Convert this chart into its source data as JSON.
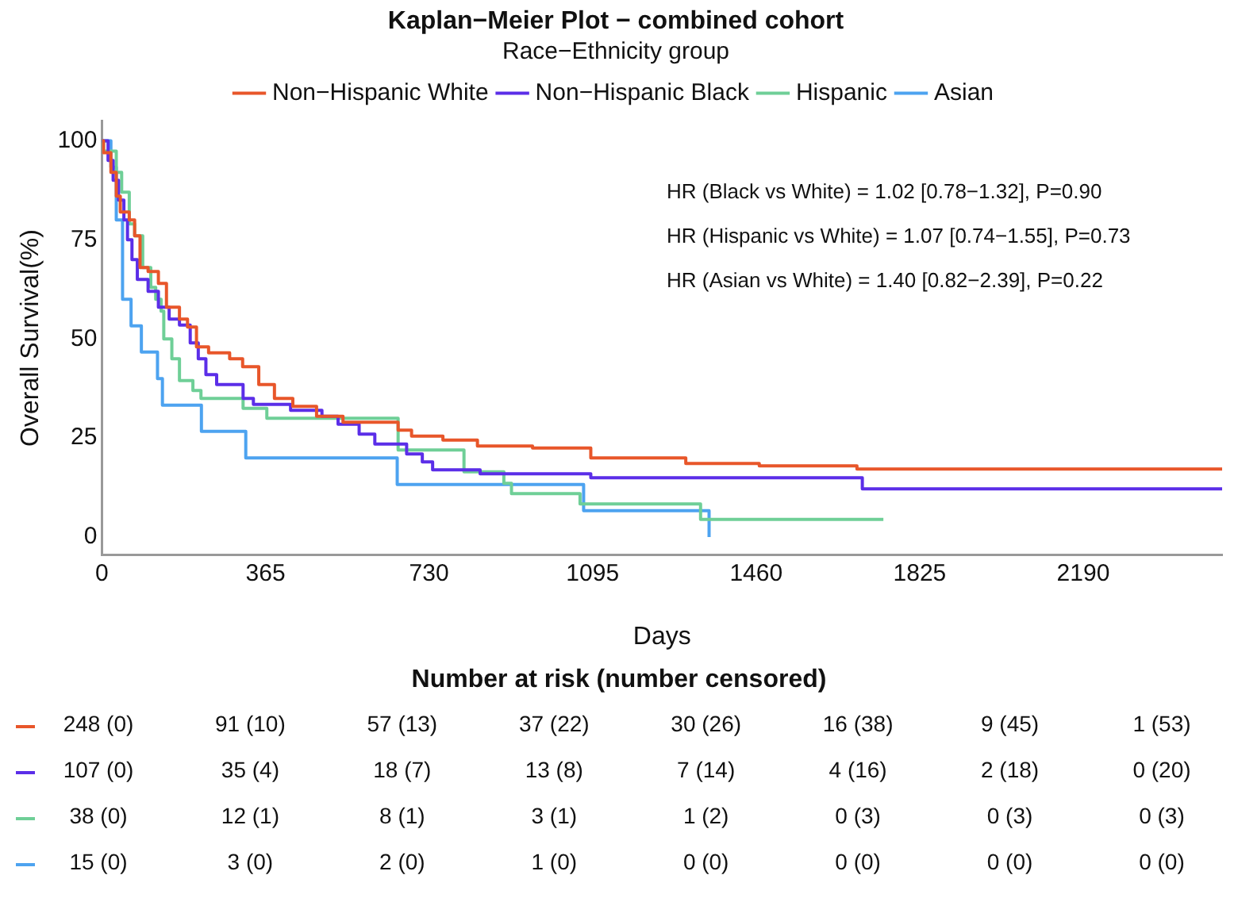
{
  "chart_data": {
    "type": "step",
    "title": "Kaplan−Meier Plot − combined cohort",
    "xlabel": "Days",
    "ylabel": "Overall Survival(%)",
    "legend_title": "Race−Ethnicity group",
    "legend": "top",
    "grid": false,
    "marker": "none",
    "line_style": "solid",
    "xlim": [
      0,
      2500
    ],
    "xticks": [
      0,
      365,
      730,
      1095,
      1460,
      1825,
      2190
    ],
    "ylim": [
      -4.5,
      105
    ],
    "yticks": [
      0,
      25,
      50,
      75,
      100
    ],
    "series": [
      {
        "name": "Non−Hispanic White",
        "color": "#e8562a",
        "x": [
          0,
          3.5,
          20,
          32,
          41,
          61,
          73,
          85,
          103,
          126,
          144,
          173,
          191,
          211,
          238,
          285,
          314,
          350,
          385,
          426,
          479,
          538,
          661,
          691,
          761,
          838,
          961,
          1091,
          1303,
          1467,
          1685,
          2500
        ],
        "values": [
          100,
          97,
          92,
          86,
          82,
          80,
          76,
          68,
          67,
          64,
          58,
          55,
          53,
          48,
          46.5,
          45,
          43,
          38.5,
          35,
          33,
          30.5,
          29,
          27,
          25.5,
          24.5,
          23,
          22.5,
          20,
          18.6,
          18,
          17.2,
          17.2
        ]
      },
      {
        "name": "Non−Hispanic Black",
        "color": "#5b2ee8",
        "x": [
          0,
          13.7,
          25,
          37,
          49,
          57,
          67,
          79,
          103,
          126,
          150,
          173,
          197,
          215,
          232,
          256,
          315,
          338,
          421,
          491,
          527,
          574,
          609,
          680,
          715,
          738,
          844,
          1091,
          1697,
          2500
        ],
        "values": [
          100,
          95,
          90,
          85,
          80,
          75,
          70,
          65,
          62,
          58,
          55,
          53.5,
          49,
          45,
          41,
          38.5,
          35,
          33.5,
          32,
          30.5,
          28.5,
          26,
          23.5,
          21,
          19,
          17,
          16,
          15,
          12.2,
          12.2
        ]
      },
      {
        "name": "Hispanic",
        "color": "#6fcf97",
        "x": [
          0,
          3.5,
          32,
          44,
          61,
          73,
          91,
          109,
          120,
          132,
          138,
          156,
          173,
          203,
          221,
          315,
          368,
          661,
          808,
          897,
          914,
          1067,
          1336,
          1744
        ],
        "values": [
          100,
          97.4,
          92,
          87,
          79,
          76,
          68,
          63,
          60,
          57,
          50,
          45,
          39.5,
          37,
          35,
          32.5,
          30,
          22,
          16.5,
          13.6,
          11,
          8.4,
          4.5,
          4.5
        ]
      },
      {
        "name": "Asian",
        "color": "#4da3f0",
        "x": [
          0,
          20,
          32,
          46,
          65,
          88,
          124,
          135,
          222,
          321,
          659,
          1075,
          1355
        ],
        "values": [
          100,
          93.3,
          80,
          60,
          53.3,
          46.7,
          40,
          33.3,
          26.7,
          20,
          13.3,
          6.7,
          0
        ]
      }
    ],
    "annotations": [
      "HR (Black vs White) = 1.02 [0.78−1.32], P=0.90",
      "HR (Hispanic vs White) = 1.07 [0.74−1.55], P=0.73",
      "HR (Asian vs White) = 1.40 [0.82−2.39], P=0.22",
      "Number at risk (number censored)",
      "248 (0)",
      "91 (10)",
      "57 (13)",
      "37 (22)",
      "30 (26)",
      "16 (38)",
      "9 (45)",
      "1 (53)",
      "107 (0)",
      "35 (4)",
      "18 (7)",
      "13 (8)",
      "7 (14)",
      "4 (16)",
      "2 (18)",
      "0 (20)",
      "38 (0)",
      "12 (1)",
      "8 (1)",
      "3 (1)",
      "1 (2)",
      "0 (3)",
      "0 (3)",
      "0 (3)",
      "15 (0)",
      "3 (0)",
      "2 (0)",
      "1 (0)",
      "0 (0)",
      "0 (0)",
      "0 (0)",
      "0 (0)"
    ]
  }
}
